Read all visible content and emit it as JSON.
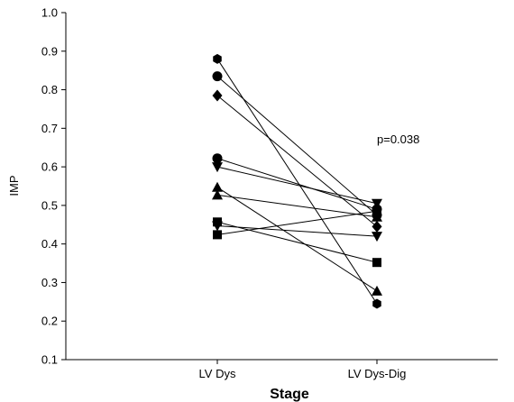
{
  "chart_data": {
    "type": "scatter",
    "xlabel": "Stage",
    "ylabel": "IMP",
    "categories": [
      "LV Dys",
      "LV Dys-Dig"
    ],
    "ylim": [
      0.1,
      1.0
    ],
    "yticks": [
      "0.1",
      "0.2",
      "0.3",
      "0.4",
      "0.5",
      "0.6",
      "0.7",
      "0.8",
      "0.9",
      "1.0"
    ],
    "annotation": "p=0.038",
    "grid": false,
    "legend": "none",
    "paired": true,
    "colors": {
      "marker": "#000000",
      "line": "#000000"
    },
    "pairs": [
      {
        "marker": "hexagon",
        "values": [
          0.88,
          0.245
        ]
      },
      {
        "marker": "circle",
        "values": [
          0.835,
          0.475
        ]
      },
      {
        "marker": "diamond",
        "values": [
          0.785,
          0.445
        ]
      },
      {
        "marker": "circle",
        "values": [
          0.622,
          0.49
        ]
      },
      {
        "marker": "tri-down",
        "values": [
          0.6,
          0.505
        ]
      },
      {
        "marker": "tri-up",
        "values": [
          0.547,
          0.278
        ]
      },
      {
        "marker": "tri-up",
        "values": [
          0.527,
          0.47
        ]
      },
      {
        "marker": "square",
        "values": [
          0.457,
          0.352
        ]
      },
      {
        "marker": "tri-down",
        "values": [
          0.447,
          0.42
        ]
      },
      {
        "marker": "square",
        "values": [
          0.424,
          0.485
        ]
      }
    ]
  }
}
